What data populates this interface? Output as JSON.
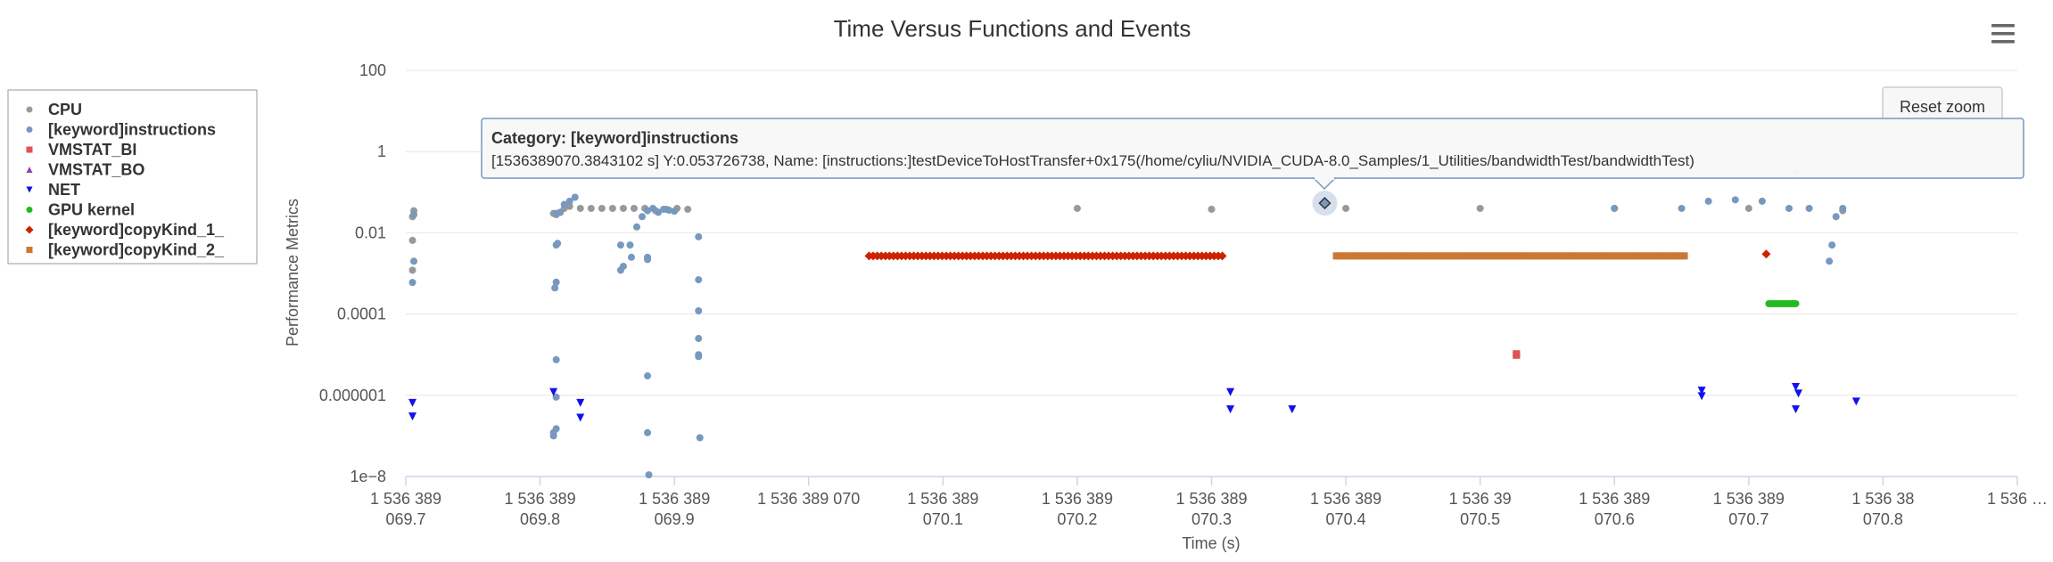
{
  "chart_data": {
    "type": "scatter",
    "title": "Time Versus Functions and Events",
    "xlabel": "Time (s)",
    "ylabel": "Performance Metrics",
    "ylog": true,
    "ylim": [
      1e-08,
      100
    ],
    "xlim": [
      1536389069.7,
      1536389070.9
    ],
    "y_ticks": [
      {
        "value": 1e-08,
        "label": "1e−8"
      },
      {
        "value": 1e-06,
        "label": "0.000001"
      },
      {
        "value": 0.0001,
        "label": "0.0001"
      },
      {
        "value": 0.01,
        "label": "0.01"
      },
      {
        "value": 1,
        "label": "1"
      },
      {
        "value": 100,
        "label": "100"
      }
    ],
    "x_ticks": [
      {
        "value": 1536389069.7,
        "line1": "1 536 389",
        "line2": "069.7"
      },
      {
        "value": 1536389069.8,
        "line1": "1 536 389",
        "line2": "069.8"
      },
      {
        "value": 1536389069.9,
        "line1": "1 536 389",
        "line2": "069.9"
      },
      {
        "value": 1536389070.0,
        "line1": "1 536 389 070",
        "line2": ""
      },
      {
        "value": 1536389070.1,
        "line1": "1 536 389",
        "line2": "070.1"
      },
      {
        "value": 1536389070.2,
        "line1": "1 536 389",
        "line2": "070.2"
      },
      {
        "value": 1536389070.3,
        "line1": "1 536 389",
        "line2": "070.3"
      },
      {
        "value": 1536389070.4,
        "line1": "1 536 389",
        "line2": "070.4"
      },
      {
        "value": 1536389070.5,
        "line1": "1 536 39",
        "line2": "070.5"
      },
      {
        "value": 1536389070.6,
        "line1": "1 536 389",
        "line2": "070.6"
      },
      {
        "value": 1536389070.7,
        "line1": "1 536 389",
        "line2": "070.7"
      },
      {
        "value": 1536389070.8,
        "line1": "1 536 38",
        "line2": "070.8"
      },
      {
        "value": 1536389070.9,
        "line1": "1 536 …",
        "line2": ""
      }
    ],
    "legend_position": "left",
    "grid": true,
    "series": [
      {
        "name": "CPU",
        "color": "#999999",
        "marker": "circle",
        "points": [
          [
            1536389069.705,
            0.0012
          ],
          [
            1536389069.705,
            0.0065
          ],
          [
            1536389069.705,
            0.025
          ],
          [
            1536389069.706,
            0.035
          ],
          [
            1536389069.81,
            0.03
          ],
          [
            1536389069.812,
            0.028
          ],
          [
            1536389069.815,
            0.032
          ],
          [
            1536389069.818,
            0.04
          ],
          [
            1536389069.822,
            0.045
          ],
          [
            1536389069.83,
            0.04
          ],
          [
            1536389069.838,
            0.04
          ],
          [
            1536389069.846,
            0.04
          ],
          [
            1536389069.854,
            0.04
          ],
          [
            1536389069.862,
            0.04
          ],
          [
            1536389069.87,
            0.04
          ],
          [
            1536389069.878,
            0.04
          ],
          [
            1536389069.886,
            0.035
          ],
          [
            1536389069.894,
            0.038
          ],
          [
            1536389069.902,
            0.04
          ],
          [
            1536389069.91,
            0.038
          ],
          [
            1536389070.2,
            0.04
          ],
          [
            1536389070.3,
            0.038
          ],
          [
            1536389070.4,
            0.04
          ],
          [
            1536389070.5,
            0.04
          ],
          [
            1536389070.6,
            0.04
          ],
          [
            1536389070.7,
            0.04
          ],
          [
            1536389070.77,
            0.035
          ],
          [
            1536389070.735,
            0.3
          ]
        ]
      },
      {
        "name": "[keyword]instructions",
        "color": "#7798BF",
        "marker": "circle",
        "points": [
          [
            1536389069.705,
            0.0006
          ],
          [
            1536389069.706,
            0.028
          ],
          [
            1536389069.706,
            0.002
          ],
          [
            1536389069.81,
            1.2e-07
          ],
          [
            1536389069.81,
            1e-07
          ],
          [
            1536389069.812,
            1.5e-07
          ],
          [
            1536389069.812,
            9e-07
          ],
          [
            1536389069.812,
            7.5e-06
          ],
          [
            1536389069.811,
            0.00044
          ],
          [
            1536389069.812,
            0.00061
          ],
          [
            1536389069.812,
            0.005
          ],
          [
            1536389069.813,
            0.0055
          ],
          [
            1536389069.812,
            0.03
          ],
          [
            1536389069.815,
            0.032
          ],
          [
            1536389069.818,
            0.05
          ],
          [
            1536389069.822,
            0.06
          ],
          [
            1536389069.826,
            0.075
          ],
          [
            1536389069.86,
            0.005
          ],
          [
            1536389069.86,
            0.0012
          ],
          [
            1536389069.862,
            0.0015
          ],
          [
            1536389069.867,
            0.005
          ],
          [
            1536389069.868,
            0.0025
          ],
          [
            1536389069.872,
            0.014
          ],
          [
            1536389069.876,
            0.025
          ],
          [
            1536389069.88,
            0.035
          ],
          [
            1536389069.884,
            0.04
          ],
          [
            1536389069.888,
            0.032
          ],
          [
            1536389069.892,
            0.038
          ],
          [
            1536389069.896,
            0.036
          ],
          [
            1536389069.9,
            0.034
          ],
          [
            1536389069.88,
            3e-06
          ],
          [
            1536389069.88,
            1.2e-07
          ],
          [
            1536389069.881,
            1.1e-08
          ],
          [
            1536389069.88,
            0.0025
          ],
          [
            1536389069.88,
            0.0022
          ],
          [
            1536389069.918,
            0.008
          ],
          [
            1536389069.918,
            0.0007
          ],
          [
            1536389069.918,
            0.00012
          ],
          [
            1536389069.918,
            2.5e-05
          ],
          [
            1536389069.918,
            1e-05
          ],
          [
            1536389069.918,
            9e-06
          ],
          [
            1536389069.919,
            9e-08
          ],
          [
            1536389070.6,
            0.04
          ],
          [
            1536389070.65,
            0.04
          ],
          [
            1536389070.67,
            0.06
          ],
          [
            1536389070.69,
            0.065
          ],
          [
            1536389070.71,
            0.06
          ],
          [
            1536389070.73,
            0.04
          ],
          [
            1536389070.745,
            0.04
          ],
          [
            1536389070.76,
            0.002
          ],
          [
            1536389070.762,
            0.005
          ],
          [
            1536389070.765,
            0.025
          ],
          [
            1536389070.77,
            0.04
          ]
        ]
      },
      {
        "name": "VMSTAT_BI",
        "color": "#DF5353",
        "marker": "square",
        "points": [
          [
            1536389070.527,
            9.8e-06
          ],
          [
            1536389070.527,
            1.05e-05
          ]
        ]
      },
      {
        "name": "VMSTAT_BO",
        "color": "#8E44AD",
        "marker": "triangle-up",
        "points": []
      },
      {
        "name": "NET",
        "color": "#1111EE",
        "marker": "triangle-down",
        "points": [
          [
            1536389069.705,
            6.5e-07
          ],
          [
            1536389069.705,
            3e-07
          ],
          [
            1536389069.81,
            1.2e-06
          ],
          [
            1536389069.83,
            6.5e-07
          ],
          [
            1536389069.83,
            2.8e-07
          ],
          [
            1536389070.314,
            1.2e-06
          ],
          [
            1536389070.314,
            4.5e-07
          ],
          [
            1536389070.36,
            4.5e-07
          ],
          [
            1536389070.665,
            1.3e-06
          ],
          [
            1536389070.665,
            9.5e-07
          ],
          [
            1536389070.735,
            1.6e-06
          ],
          [
            1536389070.737,
            1.1e-06
          ],
          [
            1536389070.735,
            4.5e-07
          ],
          [
            1536389070.78,
            7e-07
          ]
        ]
      },
      {
        "name": "GPU kernel",
        "color": "#22BB22",
        "marker": "circle",
        "range": [
          1536389070.715,
          1536389070.735
        ],
        "value": 0.00018,
        "count": 14
      },
      {
        "name": "[keyword]copyKind_1_",
        "color": "#CC2200",
        "marker": "diamond",
        "range": [
          1536389070.045,
          1536389070.308
        ],
        "value": 0.0027,
        "count": 88,
        "points": [
          [
            1536389070.713,
            0.003
          ]
        ]
      },
      {
        "name": "[keyword]copyKind_2_",
        "color": "#CC7733",
        "marker": "square",
        "range": [
          1536389070.393,
          1536389070.652
        ],
        "value": 0.0027,
        "count": 87,
        "points": [
          [
            1536389070.527,
            9.7e-06
          ]
        ]
      }
    ]
  },
  "reset_zoom_label": "Reset zoom",
  "menu_icon": "hamburger-menu-icon",
  "tooltip": {
    "header": "Category: [keyword]instructions",
    "body": "[1536389070.3843102 s] Y:0.053726738, Name: [instructions:]testDeviceToHostTransfer+0x175(/home/cyliu/NVIDIA_CUDA-8.0_Samples/1_Utilities/bandwidthTest/bandwidthTest)",
    "x": 1536389070.3843102,
    "y": 0.053726738
  }
}
